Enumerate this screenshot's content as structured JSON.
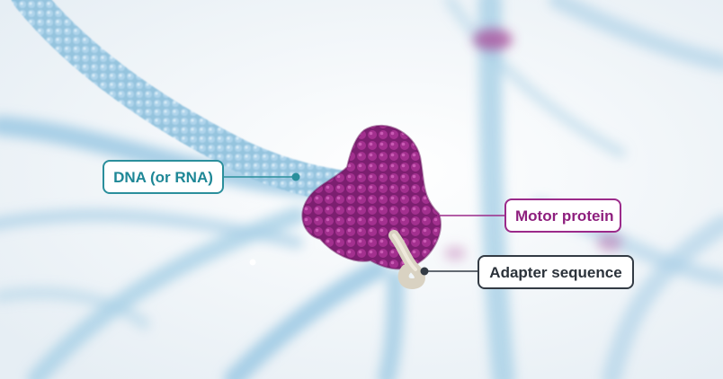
{
  "labels": {
    "dna": "DNA (or RNA)",
    "motor": "Motor protein",
    "adapter": "Adapter sequence"
  },
  "colors": {
    "background": "#f4f6f8",
    "dna_strand": "#7fb6d6",
    "motor_protein": "#9c2b8c",
    "adapter": "#d9d2c2",
    "dna_label": "#1e8796",
    "motor_label": "#8e1f7e",
    "adapter_label": "#2b323a"
  }
}
